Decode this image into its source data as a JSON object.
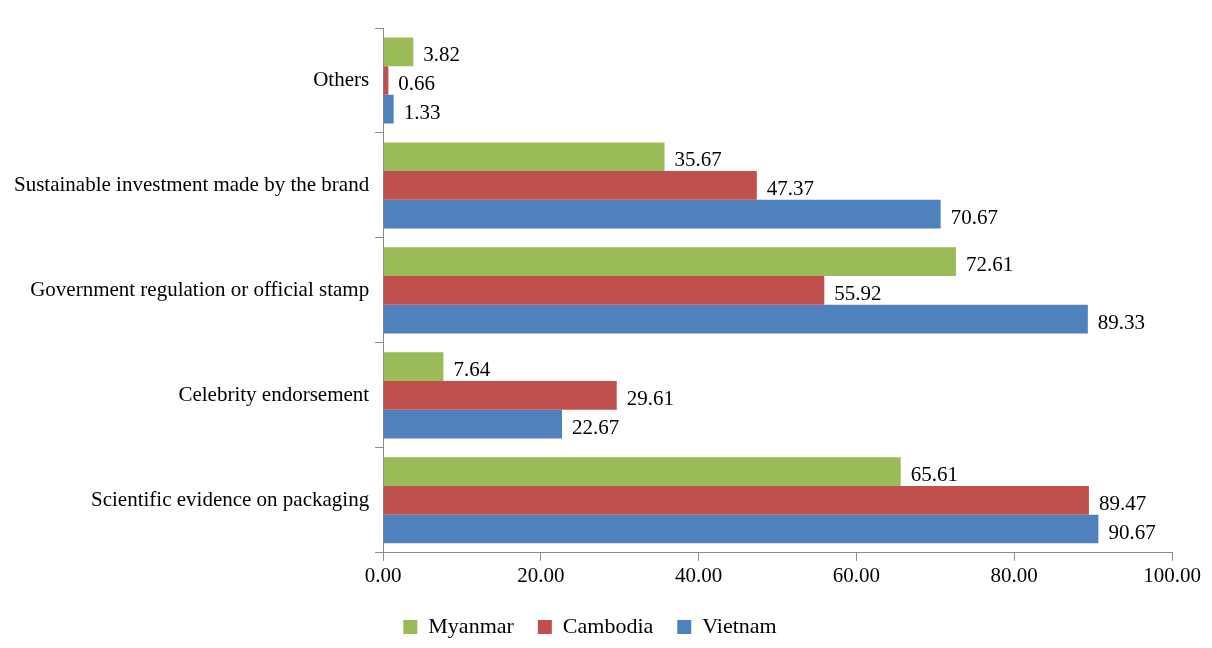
{
  "chart_data": {
    "type": "bar",
    "orientation": "horizontal",
    "categories": [
      "Others",
      "Sustainable investment made by the brand",
      "Government regulation or official stamp",
      "Celebrity endorsement",
      "Scientific evidence on packaging"
    ],
    "series": [
      {
        "name": "Myanmar",
        "color": "#9bbb59",
        "values": [
          3.82,
          35.67,
          72.61,
          7.64,
          65.61
        ]
      },
      {
        "name": "Cambodia",
        "color": "#c0504d",
        "values": [
          0.66,
          47.37,
          55.92,
          29.61,
          89.47
        ]
      },
      {
        "name": "Vietnam",
        "color": "#4f81bd",
        "values": [
          1.33,
          70.67,
          89.33,
          22.67,
          90.67
        ]
      }
    ],
    "xlim": [
      0,
      100
    ],
    "xticks": [
      {
        "value": 0,
        "label": "0.00"
      },
      {
        "value": 20,
        "label": "20.00"
      },
      {
        "value": 40,
        "label": "40.00"
      },
      {
        "value": 60,
        "label": "60.00"
      },
      {
        "value": 80,
        "label": "80.00"
      },
      {
        "value": 100,
        "label": "100.00"
      }
    ],
    "data_labels": true,
    "grid": false,
    "legend": "bottom"
  }
}
